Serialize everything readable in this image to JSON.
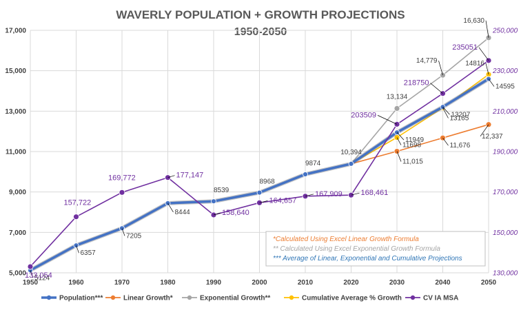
{
  "chart_data": {
    "type": "line",
    "title": "WAVERLY POPULATION + GROWTH PROJECTIONS",
    "subtitle": "1950-2050",
    "x": [
      1950,
      1960,
      1970,
      1980,
      1990,
      2000,
      2010,
      2020,
      2030,
      2040,
      2050
    ],
    "x_tick_labels": [
      "1950",
      "1960",
      "1970",
      "1980",
      "1990",
      "2000",
      "2010",
      "2020",
      "2030",
      "2040",
      "2050"
    ],
    "ylim": [
      5000,
      17000
    ],
    "y_tick_labels": [
      "5,000",
      "7,000",
      "9,000",
      "11,000",
      "13,000",
      "15,000",
      "17,000"
    ],
    "y2lim": [
      130000,
      250000
    ],
    "y2_tick_labels": [
      "130,000",
      "150,000",
      "170,000",
      "190,000",
      "210,000",
      "230,000",
      "250,000"
    ],
    "series": [
      {
        "name": "Population***",
        "axis": "left",
        "color": "#4472c4",
        "values": [
          5124,
          6357,
          7205,
          8444,
          8539,
          8968,
          9874,
          10394,
          11949,
          13207,
          14595
        ],
        "labels": [
          "5124",
          "6357",
          "7205",
          "8444",
          "8539",
          "8968",
          "9874",
          "10,394",
          "11949",
          "13207",
          "14595"
        ]
      },
      {
        "name": "Linear Growth*",
        "axis": "left",
        "color": "#ed7d31",
        "values": [
          null,
          null,
          null,
          null,
          null,
          null,
          null,
          10394,
          11015,
          11676,
          12337
        ],
        "labels": [
          "",
          "",
          "",
          "",
          "",
          "",
          "",
          "",
          "11,015",
          "11,676",
          "12,337"
        ]
      },
      {
        "name": "Exponential Growth**",
        "axis": "left",
        "color": "#a5a5a5",
        "values": [
          null,
          null,
          null,
          null,
          null,
          null,
          null,
          10394,
          13134,
          14779,
          16630
        ],
        "labels": [
          "",
          "",
          "",
          "",
          "",
          "",
          "",
          "",
          "13,134",
          "14,779",
          "16,630"
        ]
      },
      {
        "name": "Cumulative Average % Growth",
        "axis": "left",
        "color": "#ffc000",
        "values": [
          null,
          null,
          null,
          null,
          null,
          null,
          null,
          10394,
          11698,
          13165,
          14816
        ],
        "labels": [
          "",
          "",
          "",
          "",
          "",
          "",
          "",
          "",
          "11698",
          "13165",
          "14816"
        ]
      },
      {
        "name": "CV IA MSA",
        "axis": "right",
        "color": "#7030a0",
        "values": [
          133054,
          157722,
          169772,
          177147,
          158640,
          164657,
          167909,
          168461,
          203509,
          218750,
          235051
        ],
        "labels": [
          "133,054",
          "157,722",
          "169,772",
          "177,147",
          "158,640",
          "164,657",
          "167,909",
          "168,461",
          "203509",
          "218750",
          "235051"
        ]
      }
    ],
    "legend_position": "bottom",
    "notes": [
      {
        "text": "*Calculated Using Excel Linear Growth Formula",
        "color": "#ed7d31"
      },
      {
        "text": "** Calculated Using Excel Exponential Growth Formula",
        "color": "#a5a5a5"
      },
      {
        "text": "*** Average of Linear, Exponential and Cumulative Projections",
        "color": "#2e75b6"
      }
    ],
    "grid": true
  }
}
